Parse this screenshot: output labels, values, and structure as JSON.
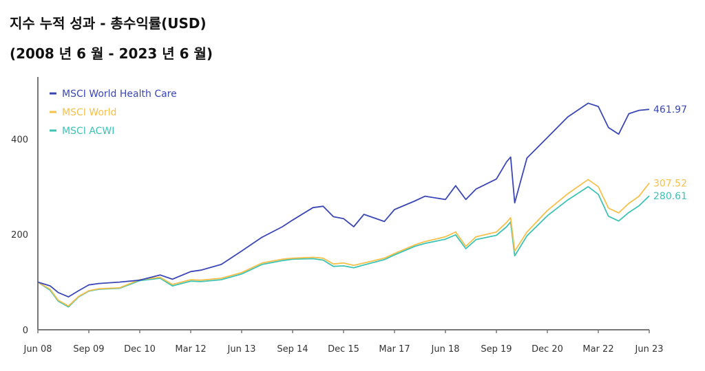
{
  "chart_data": {
    "type": "line",
    "title": "지수 누적 성과 - 총수익률(USD)",
    "subtitle": "(2008 년 6 월 - 2023 년 6 월)",
    "xlabel": "",
    "ylabel": "",
    "xlim": [
      2008.5,
      2023.5
    ],
    "ylim": [
      0,
      530
    ],
    "grid": false,
    "legend_position": "top-left",
    "x_ticks": [
      {
        "x": 2008.5,
        "label": "Jun 08"
      },
      {
        "x": 2009.75,
        "label": "Sep 09"
      },
      {
        "x": 2011.0,
        "label": "Dec 10"
      },
      {
        "x": 2012.25,
        "label": "Mar 12"
      },
      {
        "x": 2013.5,
        "label": "Jun 13"
      },
      {
        "x": 2014.75,
        "label": "Sep 14"
      },
      {
        "x": 2016.0,
        "label": "Dec 15"
      },
      {
        "x": 2017.25,
        "label": "Mar 17"
      },
      {
        "x": 2018.5,
        "label": "Jun 18"
      },
      {
        "x": 2019.75,
        "label": "Sep 19"
      },
      {
        "x": 2021.0,
        "label": "Dec 20"
      },
      {
        "x": 2022.25,
        "label": "Mar 22"
      },
      {
        "x": 2023.5,
        "label": "Jun 23"
      }
    ],
    "y_ticks": [
      {
        "y": 0,
        "label": "0"
      },
      {
        "y": 200,
        "label": "200"
      },
      {
        "y": 400,
        "label": "400"
      }
    ],
    "x": [
      2008.5,
      2008.8,
      2009.0,
      2009.25,
      2009.5,
      2009.75,
      2010.0,
      2010.5,
      2011.0,
      2011.5,
      2011.8,
      2012.25,
      2012.5,
      2013.0,
      2013.5,
      2014.0,
      2014.5,
      2014.75,
      2015.25,
      2015.5,
      2015.75,
      2016.0,
      2016.25,
      2016.5,
      2017.0,
      2017.25,
      2017.75,
      2018.0,
      2018.5,
      2018.75,
      2019.0,
      2019.25,
      2019.75,
      2020.0,
      2020.1,
      2020.2,
      2020.5,
      2021.0,
      2021.5,
      2022.0,
      2022.25,
      2022.5,
      2022.75,
      2023.0,
      2023.25,
      2023.5
    ],
    "series": [
      {
        "name": "MSCI World Health Care",
        "color": "#3a46b5",
        "end_label": "461.97",
        "values": [
          100,
          92,
          78,
          69,
          82,
          94,
          97,
          100,
          104,
          115,
          106,
          122,
          125,
          137,
          165,
          194,
          216,
          230,
          256,
          259,
          237,
          233,
          216,
          242,
          227,
          252,
          270,
          280,
          273,
          302,
          273,
          295,
          316,
          352,
          362,
          266,
          360,
          403,
          446,
          475,
          468,
          424,
          410,
          453,
          460,
          461.97
        ]
      },
      {
        "name": "MSCI World",
        "color": "#f5c04a",
        "end_label": "307.52",
        "values": [
          100,
          85,
          62,
          50,
          70,
          82,
          86,
          88,
          105,
          110,
          95,
          105,
          104,
          108,
          120,
          140,
          148,
          150,
          152,
          150,
          138,
          140,
          135,
          140,
          150,
          160,
          178,
          185,
          195,
          205,
          175,
          195,
          205,
          225,
          235,
          165,
          205,
          250,
          285,
          315,
          300,
          255,
          245,
          265,
          280,
          307.52
        ]
      },
      {
        "name": "MSCI ACWI",
        "color": "#3cc3b5",
        "end_label": "280.61",
        "values": [
          100,
          83,
          60,
          48,
          69,
          81,
          85,
          87,
          103,
          108,
          92,
          102,
          101,
          105,
          117,
          137,
          145,
          148,
          149,
          146,
          133,
          134,
          130,
          136,
          147,
          157,
          175,
          181,
          190,
          199,
          170,
          189,
          198,
          216,
          226,
          155,
          197,
          239,
          272,
          300,
          284,
          238,
          228,
          246,
          260,
          280.61
        ]
      }
    ]
  }
}
